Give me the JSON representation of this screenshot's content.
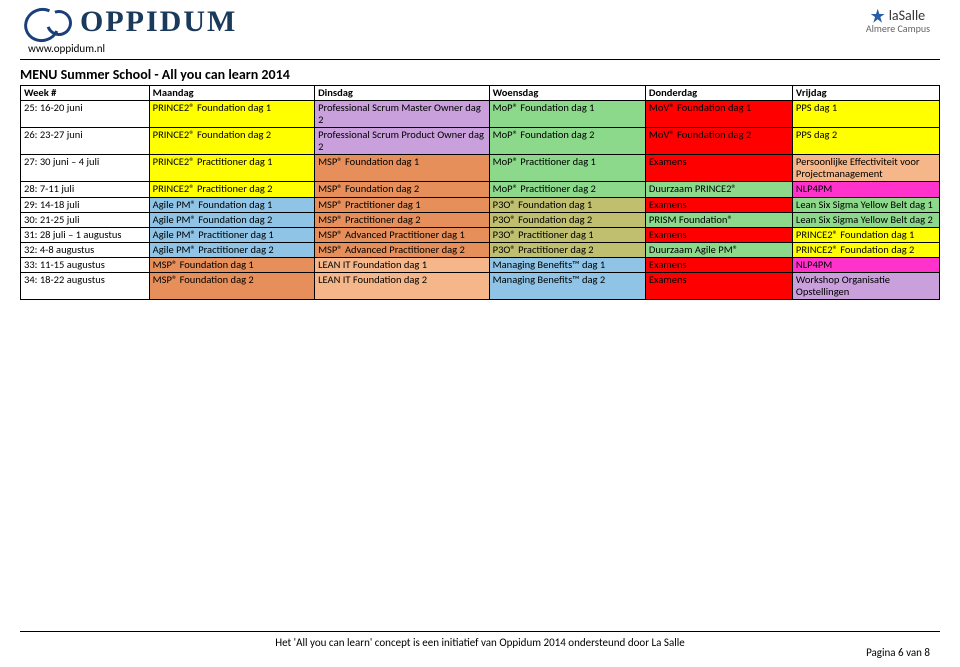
{
  "site_url": "www.oppidum.nl",
  "logo_text": "OPPIDUM",
  "lasalle": {
    "name": "laSalle",
    "sub": "Almere Campus"
  },
  "title": "MENU Summer School - All you can learn 2014",
  "columns": [
    "Week #",
    "Maandag",
    "Dinsdag",
    "Woensdag",
    "Donderdag",
    "Vrijdag"
  ],
  "col_widths": [
    "14%",
    "18%",
    "19%",
    "17%",
    "16%",
    "16%"
  ],
  "colors": {
    "yellow": "#ffff00",
    "purple": "#c9a0dc",
    "green": "#8cd98c",
    "red": "#ff0000",
    "orange_dark": "#e68f5a",
    "orange_light": "#f5b78a",
    "blue": "#8fc4e6",
    "magenta": "#ff33cc",
    "olive": "#bfbf6f",
    "text_dark": "#000000"
  },
  "rows": [
    {
      "week": "25: 16-20 juni",
      "cells": [
        {
          "t": "PRINCE2® Foundation dag 1",
          "bg": "yellow"
        },
        {
          "t": "Professional Scrum Master Owner dag 2",
          "bg": "purple"
        },
        {
          "t": "MoP® Foundation dag 1",
          "bg": "green"
        },
        {
          "t": "MoV® Foundation dag 1",
          "bg": "red"
        },
        {
          "t": "PPS dag 1",
          "bg": "yellow"
        }
      ]
    },
    {
      "week": "26: 23-27 juni",
      "cells": [
        {
          "t": "PRINCE2® Foundation dag 2",
          "bg": "yellow"
        },
        {
          "t": "Professional Scrum Product Owner dag 2",
          "bg": "purple"
        },
        {
          "t": "MoP® Foundation dag 2",
          "bg": "green"
        },
        {
          "t": "MoV® Foundation dag 2",
          "bg": "red"
        },
        {
          "t": "PPS dag 2",
          "bg": "yellow"
        }
      ]
    },
    {
      "week": "27: 30 juni – 4 juli",
      "cells": [
        {
          "t": "PRINCE2® Practitioner dag 1",
          "bg": "yellow"
        },
        {
          "t": "MSP® Foundation dag 1",
          "bg": "orange_dark"
        },
        {
          "t": "MoP® Practitioner dag 1",
          "bg": "green"
        },
        {
          "t": "Examens",
          "bg": "red"
        },
        {
          "t": "Persoonlijke Effectiviteit voor Projectmanagement",
          "bg": "orange_light"
        }
      ]
    },
    {
      "week": "28: 7-11 juli",
      "cells": [
        {
          "t": "PRINCE2® Practitioner dag 2",
          "bg": "yellow"
        },
        {
          "t": "MSP® Foundation dag 2",
          "bg": "orange_dark"
        },
        {
          "t": "MoP® Practitioner dag 2",
          "bg": "green"
        },
        {
          "t": "Duurzaam PRINCE2®",
          "bg": "green"
        },
        {
          "t": "NLP4PM",
          "bg": "magenta"
        }
      ]
    },
    {
      "week": "29: 14-18 juli",
      "cells": [
        {
          "t": "Agile PM® Foundation dag 1",
          "bg": "blue"
        },
        {
          "t": "MSP® Practitioner dag 1",
          "bg": "orange_dark"
        },
        {
          "t": "P3O® Foundation dag 1",
          "bg": "olive"
        },
        {
          "t": "Examens",
          "bg": "red"
        },
        {
          "t": "Lean Six Sigma Yellow Belt dag 1",
          "bg": "green"
        }
      ]
    },
    {
      "week": "30: 21-25 juli",
      "cells": [
        {
          "t": "Agile PM® Foundation dag 2",
          "bg": "blue"
        },
        {
          "t": "MSP® Practitioner dag 2",
          "bg": "orange_dark"
        },
        {
          "t": "P3O® Foundation dag 2",
          "bg": "olive"
        },
        {
          "t": "PRISM Foundation®",
          "bg": "green"
        },
        {
          "t": "Lean Six Sigma Yellow Belt dag 2",
          "bg": "green"
        }
      ]
    },
    {
      "week": "31: 28 juli – 1 augustus",
      "cells": [
        {
          "t": "Agile PM® Practitioner dag 1",
          "bg": "blue"
        },
        {
          "t": "MSP® Advanced Practitioner dag 1",
          "bg": "orange_dark"
        },
        {
          "t": "P3O® Practitioner dag 1",
          "bg": "olive"
        },
        {
          "t": "Examens",
          "bg": "red"
        },
        {
          "t": "PRINCE2® Foundation dag 1",
          "bg": "yellow"
        }
      ]
    },
    {
      "week": "32: 4-8 augustus",
      "cells": [
        {
          "t": "Agile PM® Practitioner dag 2",
          "bg": "blue"
        },
        {
          "t": "MSP® Advanced Practitioner dag 2",
          "bg": "orange_dark"
        },
        {
          "t": "P3O® Practitioner dag 2",
          "bg": "olive"
        },
        {
          "t": "Duurzaam Agile PM®",
          "bg": "green"
        },
        {
          "t": "PRINCE2® Foundation dag 2",
          "bg": "yellow"
        }
      ]
    },
    {
      "week": "33: 11-15 augustus",
      "cells": [
        {
          "t": "MSP® Foundation dag 1",
          "bg": "orange_dark"
        },
        {
          "t": "LEAN IT Foundation dag 1",
          "bg": "orange_light"
        },
        {
          "t": "Managing Benefits™ dag 1",
          "bg": "blue"
        },
        {
          "t": "Examens",
          "bg": "red"
        },
        {
          "t": "NLP4PM",
          "bg": "magenta"
        }
      ]
    },
    {
      "week": "34: 18-22 augustus",
      "cells": [
        {
          "t": "MSP® Foundation dag 2",
          "bg": "orange_dark"
        },
        {
          "t": "LEAN IT Foundation dag 2",
          "bg": "orange_light"
        },
        {
          "t": "Managing Benefits™ dag 2",
          "bg": "blue"
        },
        {
          "t": "Examens",
          "bg": "red"
        },
        {
          "t": "Workshop Organisatie Opstellingen",
          "bg": "purple"
        }
      ]
    }
  ],
  "footer": "Het 'All you can learn' concept is een initiatief van Oppidum 2014 ondersteund door La Salle",
  "page_number": "Pagina 6 van 8"
}
